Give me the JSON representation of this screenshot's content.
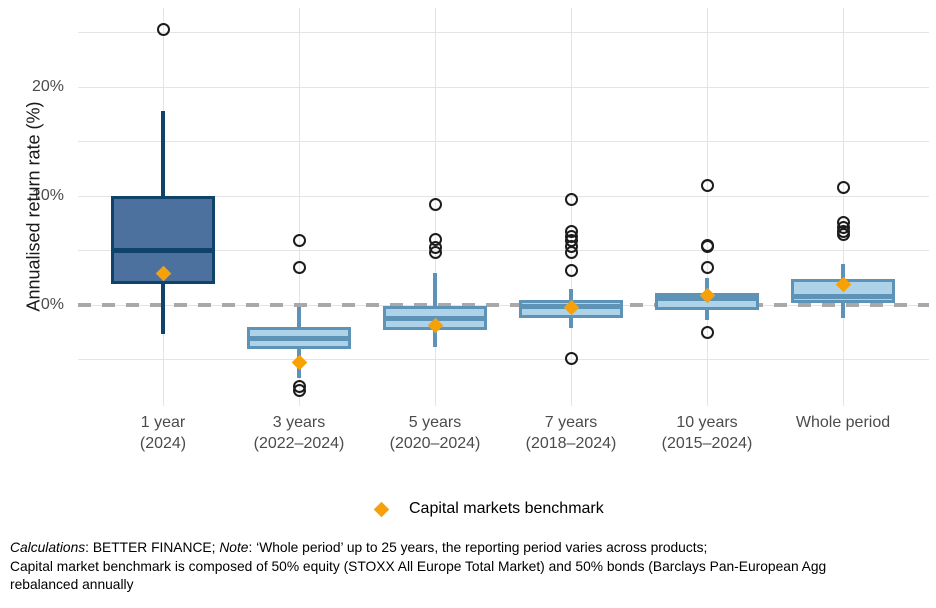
{
  "y_axis": {
    "title": "Annualised return rate (%)"
  },
  "legend": {
    "label": "Capital markets benchmark"
  },
  "footer": {
    "calculations_label": "Calculations",
    "line1_after_calculations": ": BETTER FINANCE; ",
    "note_label": "Note",
    "line1_after_note": ": ‘Whole period’ up to 25 years, the reporting period varies across products;",
    "line2": "Capital market benchmark is composed of 50% equity (STOXX All Europe Total Market) and 50% bonds (Barclays Pan-European Agg",
    "line3": "rebalanced annually"
  },
  "colors": {
    "dark_box_fill": "#4d719e",
    "dark_box_stroke": "#10436b",
    "light_box_fill": "#aed3e8",
    "light_box_stroke": "#5d93b6",
    "benchmark": "#f7a108",
    "zero_line": "#a9a9a9",
    "gridline": "#e4e4e4",
    "outlier_stroke": "#1c1c1c"
  },
  "chart_data": {
    "type": "boxplot",
    "title": "",
    "xlabel": "",
    "ylabel": "Annualised return rate (%)",
    "ylim": [
      -9,
      27
    ],
    "grid": true,
    "gridline_values_pct": [
      25,
      20,
      15,
      10,
      5,
      0,
      -5
    ],
    "yticks": [
      {
        "value": 20,
        "label": "20%"
      },
      {
        "value": 10,
        "label": "10%"
      },
      {
        "value": 0,
        "label": "0%"
      }
    ],
    "zero_reference_line_pct": 0,
    "legend_position": "bottom",
    "benchmark_series_name": "Capital markets benchmark",
    "categories": [
      {
        "label_lines": [
          "1 year",
          "(2024)"
        ],
        "style": "dark",
        "whisker_low": -2.7,
        "q1": 1.9,
        "median": 5.0,
        "q3": 10.0,
        "whisker_high": 17.8,
        "outliers": [
          25.3
        ],
        "benchmark": 2.9
      },
      {
        "label_lines": [
          "3 years",
          "(2022–2024)"
        ],
        "style": "light",
        "whisker_low": -6.7,
        "q1": -4.0,
        "median": -3.1,
        "q3": -2.0,
        "whisker_high": -0.2,
        "outliers": [
          5.9,
          3.4,
          -7.5,
          -7.8
        ],
        "benchmark": -5.3
      },
      {
        "label_lines": [
          "5 years",
          "(2020–2024)"
        ],
        "style": "light",
        "whisker_low": -3.9,
        "q1": -2.3,
        "median": -1.2,
        "q3": -0.1,
        "whisker_high": 2.9,
        "outliers": [
          9.2,
          6.0,
          5.3,
          4.8
        ],
        "benchmark": -1.9
      },
      {
        "label_lines": [
          "7 years",
          "(2018–2024)"
        ],
        "style": "light",
        "whisker_low": -2.1,
        "q1": -1.2,
        "median": -0.1,
        "q3": 0.5,
        "whisker_high": 1.5,
        "outliers": [
          9.7,
          6.7,
          6.3,
          5.9,
          5.4,
          4.8,
          3.2,
          -4.9
        ],
        "benchmark": -0.2
      },
      {
        "label_lines": [
          "10 years",
          "(2015–2024)"
        ],
        "style": "light",
        "whisker_low": -1.4,
        "q1": -0.5,
        "median": 0.6,
        "q3": 1.1,
        "whisker_high": 2.5,
        "outliers": [
          11.0,
          5.5,
          5.4,
          3.4,
          -2.5
        ],
        "benchmark": 0.9
      },
      {
        "label_lines": [
          "Whole period"
        ],
        "style": "light",
        "whisker_low": -1.2,
        "q1": 0.2,
        "median": 0.8,
        "q3": 2.4,
        "whisker_high": 3.8,
        "outliers": [
          10.8,
          7.6,
          7.1,
          6.7,
          6.5
        ],
        "benchmark": 1.9
      }
    ]
  }
}
